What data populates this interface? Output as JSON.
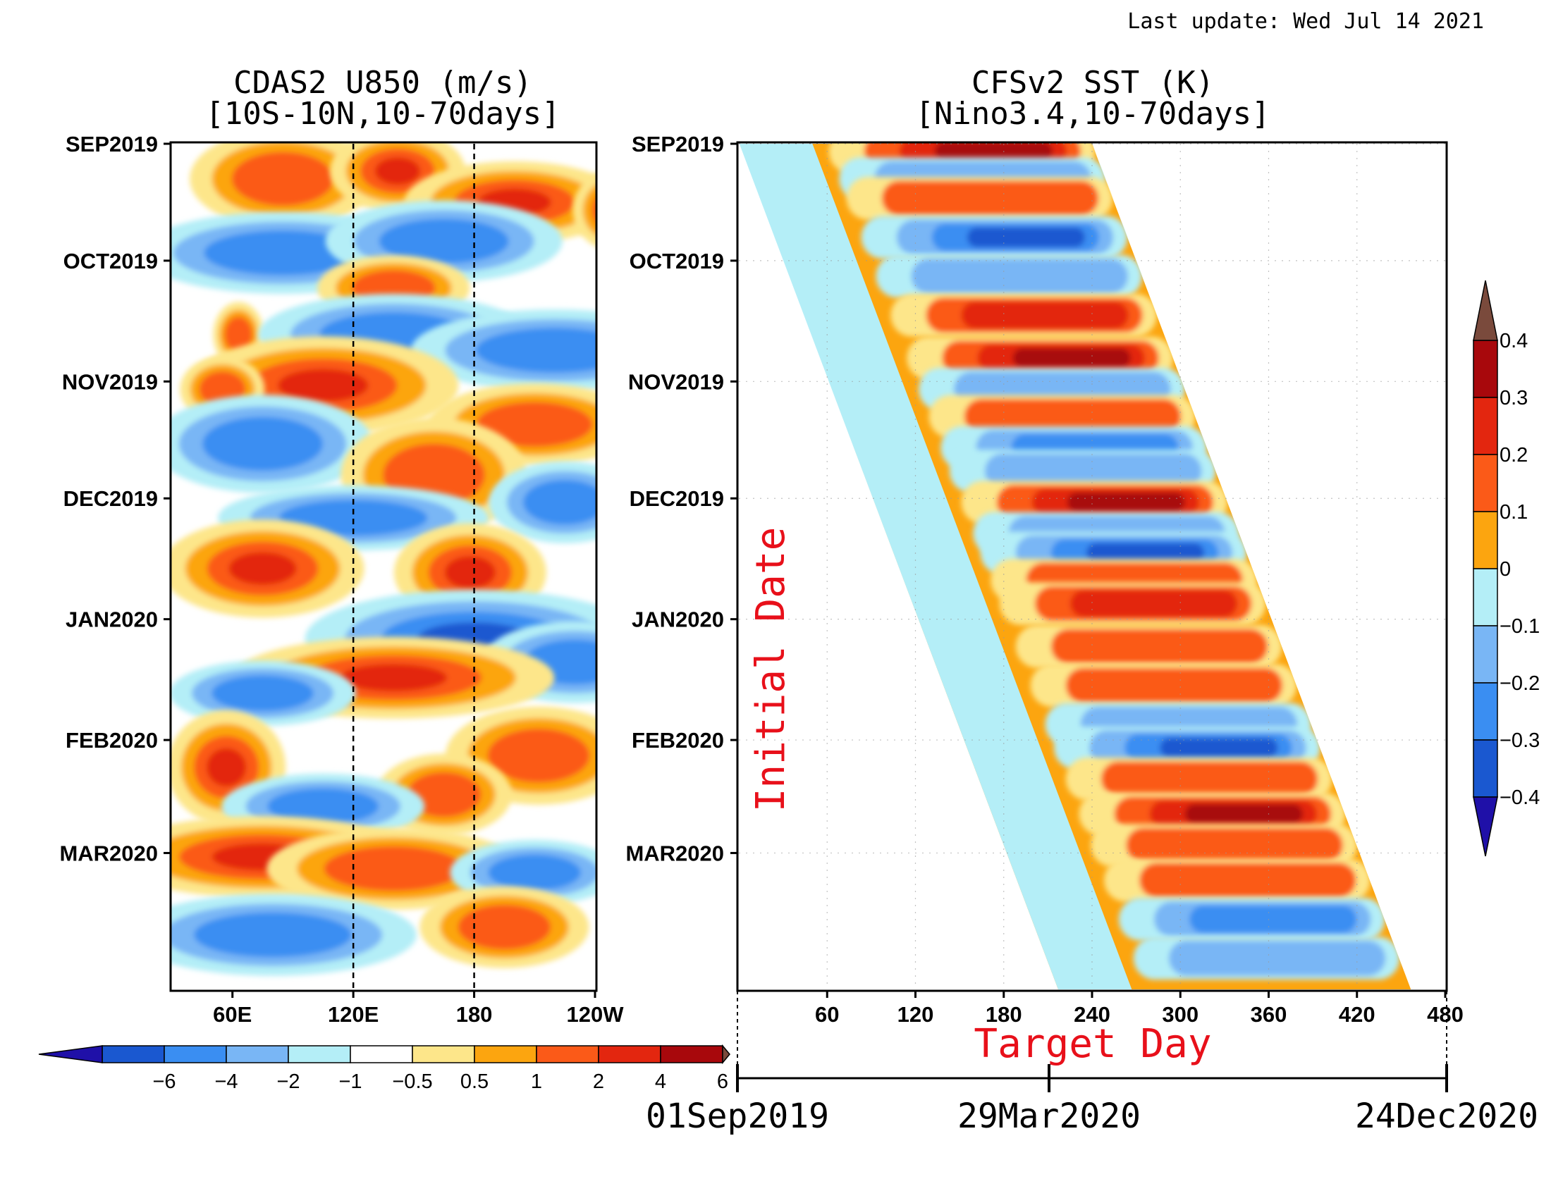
{
  "last_update": "Last update: Wed Jul 14 2021",
  "colors": {
    "levels": [
      "#1f10a8",
      "#1a58d0",
      "#3a8ef2",
      "#79b6f5",
      "#b4eef7",
      "#ffffff",
      "#fde68a",
      "#fca50f",
      "#fb5a18",
      "#e3260f",
      "#a8080c",
      "#7a4a3c"
    ],
    "axis": "#000000",
    "annotation": "#e8101a"
  },
  "chart_data": [
    {
      "type": "heatmap",
      "title": "CDAS2  U850  (m/s)",
      "subtitle": "[10S-10N,10-70days]",
      "xlabel": "",
      "ylabel": "",
      "x_ticks": [
        "60E",
        "120E",
        "180",
        "120W"
      ],
      "x_tick_values": [
        60,
        120,
        180,
        240
      ],
      "xlim": [
        30,
        240
      ],
      "y_ticks": [
        "SEP2019",
        "OCT2019",
        "NOV2019",
        "DEC2019",
        "JAN2020",
        "FEB2020",
        "MAR2020"
      ],
      "ylim": [
        "2019-09-01",
        "2020-04-05"
      ],
      "reference_lines_x": [
        120,
        180
      ],
      "colorbar": {
        "orientation": "horizontal",
        "labels": [
          "-6",
          "-4",
          "-2",
          "-1",
          "-0.5",
          "0.5",
          "1",
          "2",
          "4",
          "6"
        ],
        "levels": [
          -6,
          -4,
          -2,
          -1,
          -0.5,
          0.5,
          1,
          2,
          4,
          6
        ]
      },
      "anomalies": [
        {
          "date": "2019-09-10",
          "lon": 85,
          "dlon": 22,
          "days": 6,
          "value": 3
        },
        {
          "date": "2019-09-08",
          "lon": 142,
          "dlon": 16,
          "days": 5,
          "value": 4
        },
        {
          "date": "2019-09-16",
          "lon": 200,
          "dlon": 26,
          "days": 5,
          "value": 4
        },
        {
          "date": "2019-09-18",
          "lon": 250,
          "dlon": 10,
          "days": 5,
          "value": 2
        },
        {
          "date": "2019-09-29",
          "lon": 85,
          "dlon": 34,
          "days": 5,
          "value": -3
        },
        {
          "date": "2019-09-26",
          "lon": 165,
          "dlon": 28,
          "days": 5,
          "value": -3
        },
        {
          "date": "2019-10-08",
          "lon": 140,
          "dlon": 18,
          "days": 4,
          "value": 2
        },
        {
          "date": "2019-10-20",
          "lon": 63,
          "dlon": 6,
          "days": 4,
          "value": 3
        },
        {
          "date": "2019-10-20",
          "lon": 140,
          "dlon": 32,
          "days": 5,
          "value": -2
        },
        {
          "date": "2019-10-24",
          "lon": 220,
          "dlon": 34,
          "days": 5,
          "value": -2
        },
        {
          "date": "2019-11-02",
          "lon": 105,
          "dlon": 32,
          "days": 6,
          "value": 4
        },
        {
          "date": "2019-11-03",
          "lon": 55,
          "dlon": 10,
          "days": 4,
          "value": 2
        },
        {
          "date": "2019-11-12",
          "lon": 210,
          "dlon": 25,
          "days": 5,
          "value": 3
        },
        {
          "date": "2019-11-17",
          "lon": 75,
          "dlon": 26,
          "days": 6,
          "value": -3
        },
        {
          "date": "2019-11-25",
          "lon": 160,
          "dlon": 22,
          "days": 7,
          "value": 3
        },
        {
          "date": "2019-12-02",
          "lon": 225,
          "dlon": 18,
          "days": 5,
          "value": -2
        },
        {
          "date": "2019-12-06",
          "lon": 120,
          "dlon": 32,
          "days": 4,
          "value": -2
        },
        {
          "date": "2019-12-19",
          "lon": 75,
          "dlon": 24,
          "days": 6,
          "value": 4
        },
        {
          "date": "2019-12-20",
          "lon": 178,
          "dlon": 18,
          "days": 6,
          "value": 4
        },
        {
          "date": "2020-01-06",
          "lon": 180,
          "dlon": 40,
          "days": 6,
          "value": -4
        },
        {
          "date": "2020-01-12",
          "lon": 230,
          "dlon": 22,
          "days": 5,
          "value": -3
        },
        {
          "date": "2020-01-16",
          "lon": 140,
          "dlon": 38,
          "days": 5,
          "value": 4
        },
        {
          "date": "2020-01-20",
          "lon": 75,
          "dlon": 22,
          "days": 4,
          "value": -2
        },
        {
          "date": "2020-02-05",
          "lon": 212,
          "dlon": 22,
          "days": 6,
          "value": 3
        },
        {
          "date": "2020-02-08",
          "lon": 57,
          "dlon": 14,
          "days": 7,
          "value": 4
        },
        {
          "date": "2020-02-15",
          "lon": 165,
          "dlon": 16,
          "days": 5,
          "value": 3
        },
        {
          "date": "2020-02-18",
          "lon": 105,
          "dlon": 24,
          "days": 4,
          "value": -2
        },
        {
          "date": "2020-03-02",
          "lon": 75,
          "dlon": 36,
          "days": 5,
          "value": 4
        },
        {
          "date": "2020-03-05",
          "lon": 140,
          "dlon": 30,
          "days": 5,
          "value": 2
        },
        {
          "date": "2020-03-06",
          "lon": 210,
          "dlon": 20,
          "days": 4,
          "value": -2
        },
        {
          "date": "2020-03-22",
          "lon": 80,
          "dlon": 34,
          "days": 5,
          "value": -2
        },
        {
          "date": "2020-03-20",
          "lon": 195,
          "dlon": 20,
          "days": 5,
          "value": 2
        }
      ]
    },
    {
      "type": "heatmap",
      "title": "CFSv2  SST  (K)",
      "subtitle": "[Nino3.4,10-70days]",
      "xlabel": "Target Day",
      "ylabel": "Initial Date",
      "x_ticks": [
        "60",
        "120",
        "180",
        "240",
        "300",
        "360",
        "420",
        "480"
      ],
      "x_tick_values": [
        60,
        120,
        180,
        240,
        300,
        360,
        420,
        480
      ],
      "xlim": [
        0,
        480
      ],
      "y_ticks": [
        "SEP2019",
        "OCT2019",
        "NOV2019",
        "DEC2019",
        "JAN2020",
        "FEB2020",
        "MAR2020"
      ],
      "ylim": [
        "2019-09-01",
        "2020-04-05"
      ],
      "grid": true,
      "lead_days": 240,
      "date_axis": {
        "labels": [
          "01Sep2019",
          "29Mar2020",
          "24Dec2020"
        ]
      },
      "colorbar": {
        "orientation": "vertical",
        "labels": [
          "0.4",
          "0.3",
          "0.2",
          "0.1",
          "0",
          "-0.1",
          "-0.2",
          "-0.3",
          "-0.4"
        ],
        "levels": [
          0.4,
          0.3,
          0.2,
          0.1,
          0,
          -0.1,
          -0.2,
          -0.3,
          -0.4
        ]
      },
      "bands": [
        {
          "date": "2019-09-03",
          "value": 0.3
        },
        {
          "date": "2019-09-10",
          "value": -0.1
        },
        {
          "date": "2019-09-15",
          "value": 0.1
        },
        {
          "date": "2019-09-25",
          "value": -0.3
        },
        {
          "date": "2019-10-05",
          "value": -0.1
        },
        {
          "date": "2019-10-15",
          "value": 0.2
        },
        {
          "date": "2019-10-26",
          "value": 0.3
        },
        {
          "date": "2019-11-03",
          "value": -0.1
        },
        {
          "date": "2019-11-10",
          "value": 0.1
        },
        {
          "date": "2019-11-18",
          "value": -0.2
        },
        {
          "date": "2019-11-24",
          "value": -0.1
        },
        {
          "date": "2019-12-02",
          "value": 0.3
        },
        {
          "date": "2019-12-10",
          "value": -0.1
        },
        {
          "date": "2019-12-15",
          "value": -0.3
        },
        {
          "date": "2019-12-22",
          "value": 0.1
        },
        {
          "date": "2019-12-28",
          "value": 0.2
        },
        {
          "date": "2020-01-08",
          "value": 0.1
        },
        {
          "date": "2020-01-18",
          "value": 0.1
        },
        {
          "date": "2020-01-28",
          "value": -0.1
        },
        {
          "date": "2020-02-03",
          "value": -0.3
        },
        {
          "date": "2020-02-11",
          "value": 0.1
        },
        {
          "date": "2020-02-20",
          "value": 0.3
        },
        {
          "date": "2020-02-28",
          "value": 0.1
        },
        {
          "date": "2020-03-08",
          "value": 0.1
        },
        {
          "date": "2020-03-18",
          "value": -0.2
        },
        {
          "date": "2020-03-28",
          "value": -0.1
        }
      ]
    }
  ]
}
